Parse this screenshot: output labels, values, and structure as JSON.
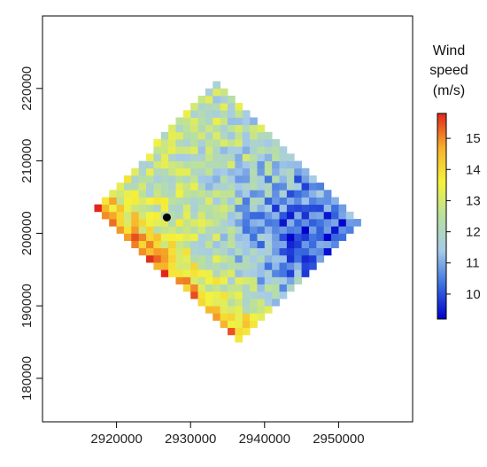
{
  "chart_data": {
    "type": "heatmap",
    "title": "",
    "xlabel": "",
    "ylabel": "",
    "xlim": [
      2910000,
      2960000
    ],
    "ylim": [
      174000,
      230000
    ],
    "x_ticks": [
      2920000,
      2930000,
      2940000,
      2950000
    ],
    "y_ticks": [
      180000,
      190000,
      200000,
      210000,
      220000
    ],
    "x_tick_labels": [
      "2920000",
      "2930000",
      "2940000",
      "2950000"
    ],
    "y_tick_labels": [
      "180000",
      "190000",
      "200000",
      "210000",
      "220000"
    ],
    "grid": false,
    "domain_polygon": [
      [
        2933500,
        221000
      ],
      [
        2953000,
        202000
      ],
      [
        2936500,
        185000
      ],
      [
        2917000,
        203500
      ]
    ],
    "cell_size": 1000,
    "value_range": [
      9.2,
      15.8
    ],
    "value_pattern": {
      "base": 12.2,
      "low_center": [
        2946500,
        200500
      ],
      "low_amount": 2.4,
      "high_edge": "southwest",
      "high_amount": 3.0
    },
    "marker": {
      "x": 2926800,
      "y": 202200,
      "color": "#000000"
    },
    "colorbar": {
      "title_lines": [
        "Wind",
        "speed",
        "(m/s)"
      ],
      "ticks": [
        10,
        11,
        12,
        13,
        14,
        15
      ],
      "tick_labels": [
        "10",
        "11",
        "12",
        "13",
        "14",
        "15"
      ],
      "range": [
        9.2,
        15.8
      ],
      "placement": "right",
      "colors": [
        "#0000cc",
        "#3b6fe0",
        "#a6cbe8",
        "#b8e0a0",
        "#f5f23c",
        "#f7b02a",
        "#e2261c"
      ]
    }
  }
}
